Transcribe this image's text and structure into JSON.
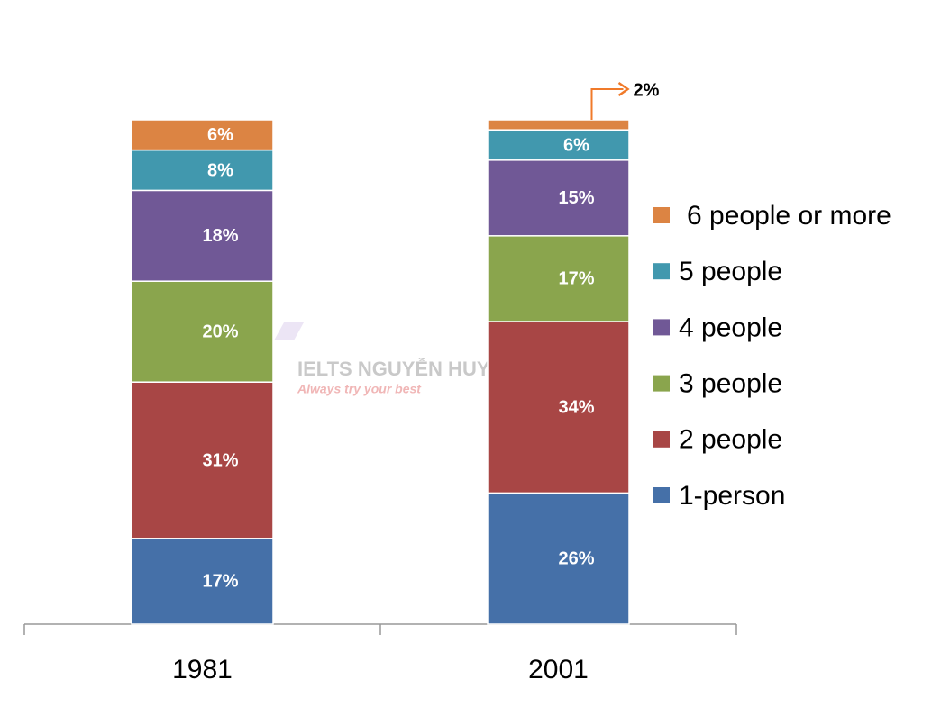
{
  "chart_data": {
    "type": "stacked-bar",
    "categories": [
      "1981",
      "2001"
    ],
    "series": [
      {
        "name": "1-person",
        "color": "#4570a8",
        "values": [
          17,
          26
        ],
        "value_labels": [
          "17%",
          "26%"
        ]
      },
      {
        "name": "2 people",
        "color": "#a84645",
        "values": [
          31,
          34
        ],
        "value_labels": [
          "31%",
          "34%"
        ]
      },
      {
        "name": "3 people",
        "color": "#8aa54d",
        "values": [
          20,
          17
        ],
        "value_labels": [
          "20%",
          "17%"
        ]
      },
      {
        "name": "4 people",
        "color": "#705896",
        "values": [
          18,
          15
        ],
        "value_labels": [
          "18%",
          "15%"
        ]
      },
      {
        "name": "5 people",
        "color": "#4198ae",
        "values": [
          8,
          6
        ],
        "value_labels": [
          "8%",
          "6%"
        ]
      },
      {
        "name": "6 people or more",
        "color": "#dc8443",
        "values": [
          6,
          2
        ],
        "value_labels": [
          "6%",
          "2%"
        ]
      }
    ],
    "legend": "right"
  },
  "watermark": {
    "title": "IELTS NGUYỄN HUYỀN",
    "subtitle": "Always try your best"
  }
}
